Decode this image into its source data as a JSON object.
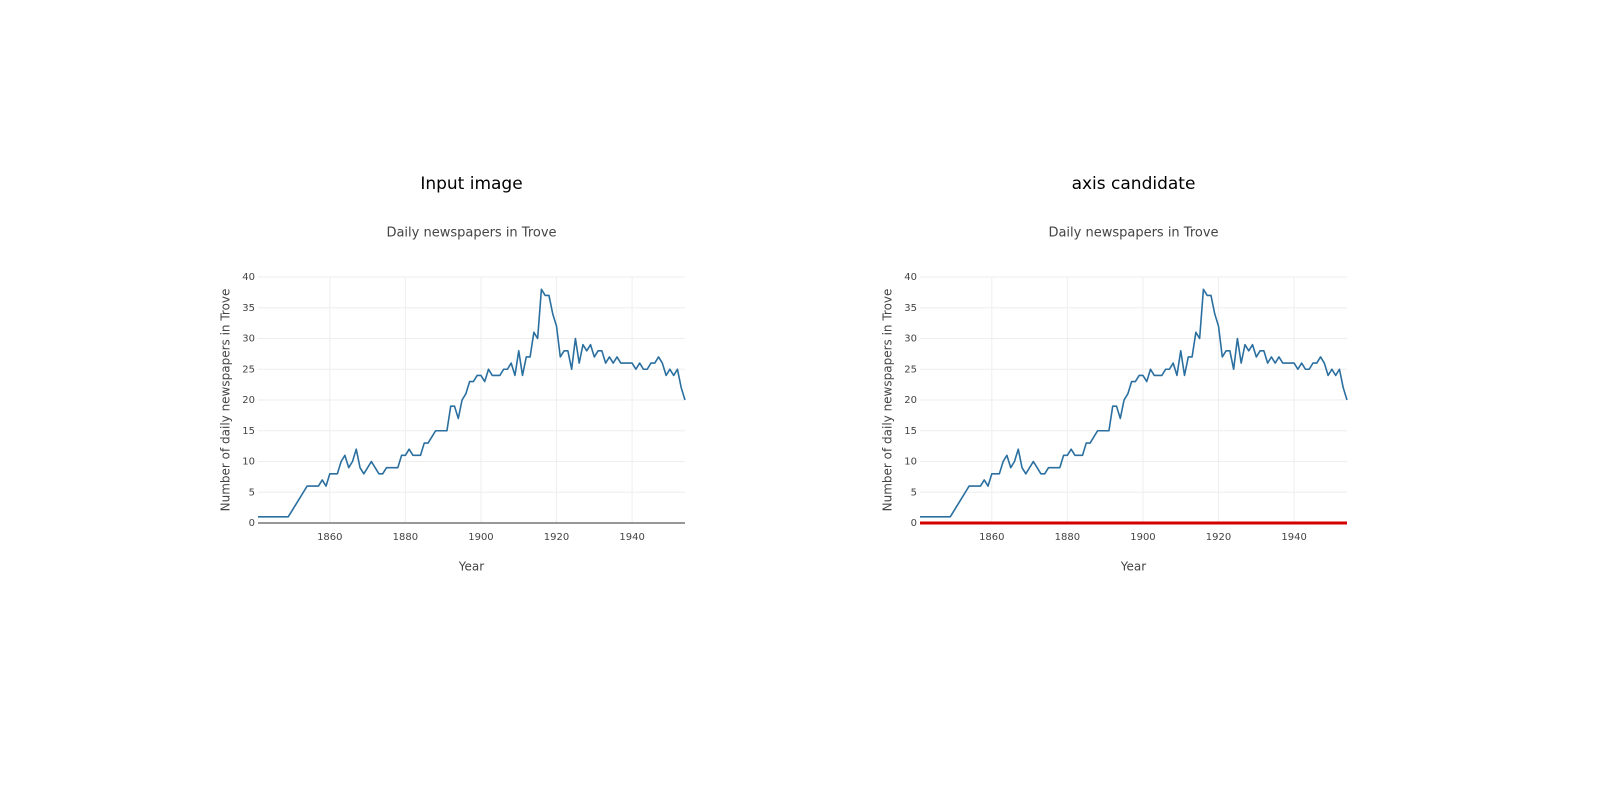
{
  "chart_data": [
    {
      "type": "line",
      "heading": "Input image",
      "title": "Daily newspapers in Trove",
      "xlabel": "Year",
      "ylabel": "Number of daily newspapers in Trove",
      "x": [
        1841,
        1842,
        1843,
        1844,
        1845,
        1846,
        1847,
        1848,
        1849,
        1850,
        1851,
        1852,
        1853,
        1854,
        1855,
        1856,
        1857,
        1858,
        1859,
        1860,
        1861,
        1862,
        1863,
        1864,
        1865,
        1866,
        1867,
        1868,
        1869,
        1870,
        1871,
        1872,
        1873,
        1874,
        1875,
        1876,
        1877,
        1878,
        1879,
        1880,
        1881,
        1882,
        1883,
        1884,
        1885,
        1886,
        1887,
        1888,
        1889,
        1890,
        1891,
        1892,
        1893,
        1894,
        1895,
        1896,
        1897,
        1898,
        1899,
        1900,
        1901,
        1902,
        1903,
        1904,
        1905,
        1906,
        1907,
        1908,
        1909,
        1910,
        1911,
        1912,
        1913,
        1914,
        1915,
        1916,
        1917,
        1918,
        1919,
        1920,
        1921,
        1922,
        1923,
        1924,
        1925,
        1926,
        1927,
        1928,
        1929,
        1930,
        1931,
        1932,
        1933,
        1934,
        1935,
        1936,
        1937,
        1938,
        1939,
        1940,
        1941,
        1942,
        1943,
        1944,
        1945,
        1946,
        1947,
        1948,
        1949,
        1950,
        1951,
        1952,
        1953,
        1954
      ],
      "values": [
        1,
        1,
        1,
        1,
        1,
        1,
        1,
        1,
        1,
        2,
        3,
        4,
        5,
        6,
        6,
        6,
        6,
        7,
        6,
        8,
        8,
        8,
        10,
        11,
        9,
        10,
        12,
        9,
        8,
        9,
        10,
        9,
        8,
        8,
        9,
        9,
        9,
        9,
        11,
        11,
        12,
        11,
        11,
        11,
        13,
        13,
        14,
        15,
        15,
        15,
        15,
        19,
        19,
        17,
        20,
        21,
        23,
        23,
        24,
        24,
        23,
        25,
        24,
        24,
        24,
        25,
        25,
        26,
        24,
        28,
        24,
        27,
        27,
        31,
        30,
        38,
        37,
        37,
        34,
        32,
        27,
        28,
        28,
        25,
        30,
        26,
        29,
        28,
        29,
        27,
        28,
        28,
        26,
        27,
        26,
        27,
        26,
        26,
        26,
        26,
        25,
        26,
        25,
        25,
        26,
        26,
        27,
        26,
        24,
        25,
        24,
        25,
        22,
        20
      ],
      "color": "#2a6f9f",
      "xlim": [
        1841,
        1954
      ],
      "ylim": [
        0,
        40
      ],
      "xticks": [
        1860,
        1880,
        1900,
        1920,
        1940
      ],
      "yticks": [
        0,
        5,
        10,
        15,
        20,
        25,
        30,
        35,
        40
      ],
      "grid": true,
      "axis_line_color": "#777777"
    },
    {
      "type": "line",
      "heading": "axis candidate",
      "title": "Daily newspapers in Trove",
      "xlabel": "Year",
      "ylabel": "Number of daily newspapers in Trove",
      "x": [
        1841,
        1842,
        1843,
        1844,
        1845,
        1846,
        1847,
        1848,
        1849,
        1850,
        1851,
        1852,
        1853,
        1854,
        1855,
        1856,
        1857,
        1858,
        1859,
        1860,
        1861,
        1862,
        1863,
        1864,
        1865,
        1866,
        1867,
        1868,
        1869,
        1870,
        1871,
        1872,
        1873,
        1874,
        1875,
        1876,
        1877,
        1878,
        1879,
        1880,
        1881,
        1882,
        1883,
        1884,
        1885,
        1886,
        1887,
        1888,
        1889,
        1890,
        1891,
        1892,
        1893,
        1894,
        1895,
        1896,
        1897,
        1898,
        1899,
        1900,
        1901,
        1902,
        1903,
        1904,
        1905,
        1906,
        1907,
        1908,
        1909,
        1910,
        1911,
        1912,
        1913,
        1914,
        1915,
        1916,
        1917,
        1918,
        1919,
        1920,
        1921,
        1922,
        1923,
        1924,
        1925,
        1926,
        1927,
        1928,
        1929,
        1930,
        1931,
        1932,
        1933,
        1934,
        1935,
        1936,
        1937,
        1938,
        1939,
        1940,
        1941,
        1942,
        1943,
        1944,
        1945,
        1946,
        1947,
        1948,
        1949,
        1950,
        1951,
        1952,
        1953,
        1954
      ],
      "values": [
        1,
        1,
        1,
        1,
        1,
        1,
        1,
        1,
        1,
        2,
        3,
        4,
        5,
        6,
        6,
        6,
        6,
        7,
        6,
        8,
        8,
        8,
        10,
        11,
        9,
        10,
        12,
        9,
        8,
        9,
        10,
        9,
        8,
        8,
        9,
        9,
        9,
        9,
        11,
        11,
        12,
        11,
        11,
        11,
        13,
        13,
        14,
        15,
        15,
        15,
        15,
        19,
        19,
        17,
        20,
        21,
        23,
        23,
        24,
        24,
        23,
        25,
        24,
        24,
        24,
        25,
        25,
        26,
        24,
        28,
        24,
        27,
        27,
        31,
        30,
        38,
        37,
        37,
        34,
        32,
        27,
        28,
        28,
        25,
        30,
        26,
        29,
        28,
        29,
        27,
        28,
        28,
        26,
        27,
        26,
        27,
        26,
        26,
        26,
        26,
        25,
        26,
        25,
        25,
        26,
        26,
        27,
        26,
        24,
        25,
        24,
        25,
        22,
        20
      ],
      "color": "#2a6f9f",
      "xlim": [
        1841,
        1954
      ],
      "ylim": [
        0,
        40
      ],
      "xticks": [
        1860,
        1880,
        1900,
        1920,
        1940
      ],
      "yticks": [
        0,
        5,
        10,
        15,
        20,
        25,
        30,
        35,
        40
      ],
      "grid": true,
      "axis_line_color": "#d40000"
    }
  ]
}
